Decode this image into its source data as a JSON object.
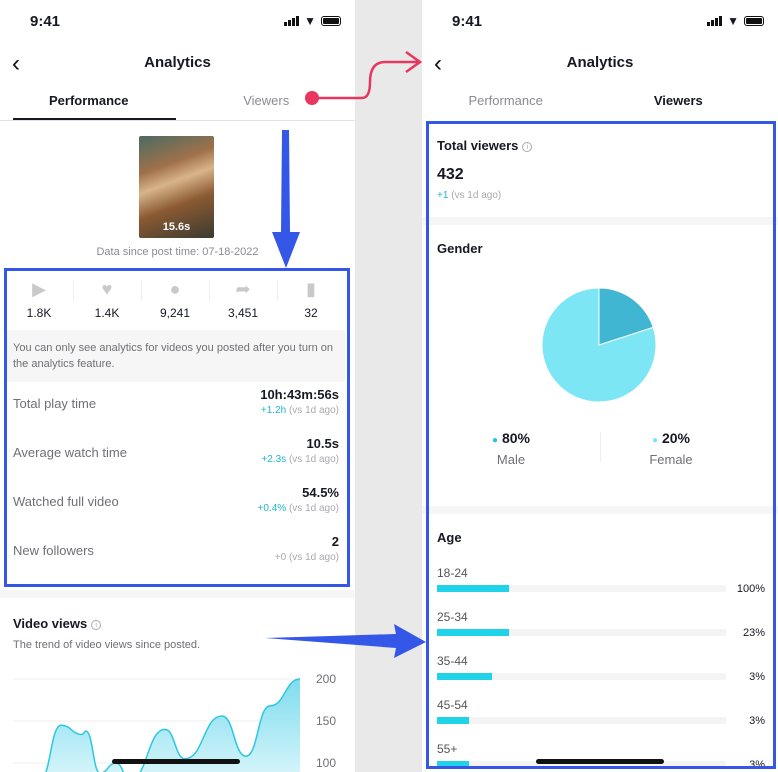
{
  "status_bar": {
    "time": "9:41"
  },
  "header": {
    "title": "Analytics",
    "back_icon": "chevron-left-icon"
  },
  "tabs": [
    {
      "label": "Performance"
    },
    {
      "label": "Viewers"
    }
  ],
  "performance": {
    "video": {
      "duration": "15.6s"
    },
    "data_since": "Data since post time: 07-18-2022",
    "stats": [
      {
        "icon": "play-icon",
        "value": "1.8K"
      },
      {
        "icon": "heart-icon",
        "value": "1.4K"
      },
      {
        "icon": "comment-icon",
        "value": "9,241"
      },
      {
        "icon": "share-icon",
        "value": "3,451"
      },
      {
        "icon": "bookmark-icon",
        "value": "32"
      }
    ],
    "note": "You can only see analytics for videos you posted after you turn on the analytics feature.",
    "metrics": [
      {
        "label": "Total play time",
        "value": "10h:43m:56s",
        "delta": "+1.2h",
        "compare": "(vs 1d ago)"
      },
      {
        "label": "Average watch time",
        "value": "10.5s",
        "delta": "+2.3s",
        "compare": "(vs 1d ago)"
      },
      {
        "label": "Watched full video",
        "value": "54.5%",
        "delta": "+0.4%",
        "compare": "(vs 1d ago)"
      },
      {
        "label": "New followers",
        "value": "2",
        "delta": "+0",
        "compare": "(vs 1d ago)"
      }
    ],
    "video_views": {
      "title": "Video views",
      "subtitle": "The trend of video views since posted."
    }
  },
  "viewers": {
    "total": {
      "title": "Total viewers",
      "value": "432",
      "delta": "+1",
      "compare": "(vs 1d ago)"
    },
    "gender": {
      "title": "Gender",
      "items": [
        {
          "pct": "80%",
          "label": "Male",
          "color": "#7de6f5"
        },
        {
          "pct": "20%",
          "label": "Female",
          "color": "#41b6d3"
        }
      ]
    },
    "age": {
      "title": "Age",
      "items": [
        {
          "label": "18-24",
          "pct": "100%",
          "fill": 0.25
        },
        {
          "label": "25-34",
          "pct": "23%",
          "fill": 0.25
        },
        {
          "label": "35-44",
          "pct": "3%",
          "fill": 0.19
        },
        {
          "label": "45-54",
          "pct": "3%",
          "fill": 0.11
        },
        {
          "label": "55+",
          "pct": "3%",
          "fill": 0.11
        }
      ]
    }
  },
  "chart_data": [
    {
      "type": "area",
      "y_ticks": [
        "200",
        "150",
        "100"
      ],
      "ylim": [
        85,
        200
      ],
      "values": [
        80,
        145,
        134,
        138,
        88,
        100,
        80,
        140,
        105,
        156,
        108,
        168,
        200
      ],
      "color": "#2bc8e0"
    },
    {
      "type": "pie",
      "categories": [
        "Male",
        "Female"
      ],
      "values": [
        80,
        20
      ],
      "colors": [
        "#7de6f5",
        "#41b6d3"
      ]
    }
  ],
  "annotation_colors": {
    "box": "#3557e8",
    "arrow_blue": "#3557e8",
    "arrow_red": "#e8365e"
  }
}
